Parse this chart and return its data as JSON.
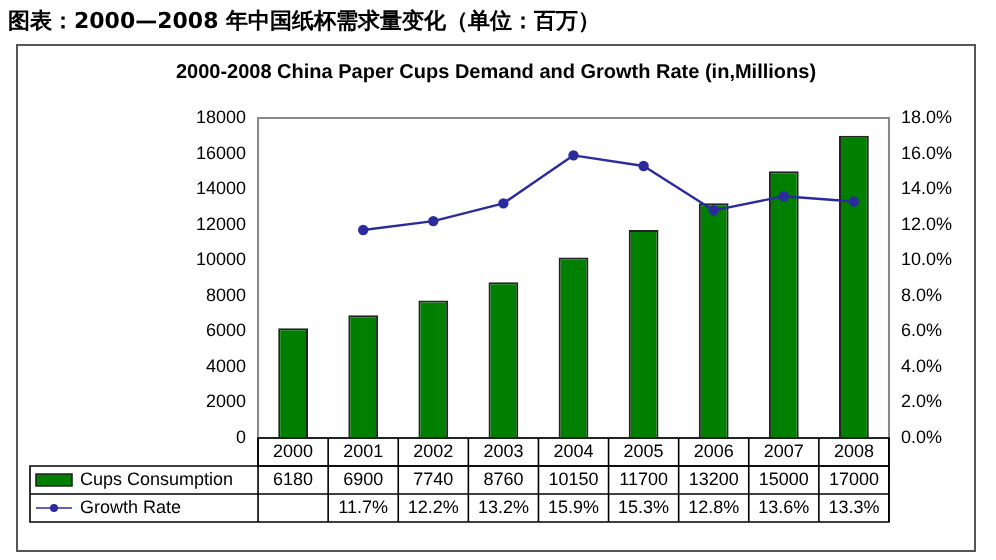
{
  "chart_data": {
    "type": "bar",
    "title": "图表：2000—2008 年中国纸杯需求量变化（单位：百万）",
    "subtitle": "2000-2008 China Paper Cups Demand and Growth Rate (in,Millions)",
    "categories": [
      "2000",
      "2001",
      "2002",
      "2003",
      "2004",
      "2005",
      "2006",
      "2007",
      "2008"
    ],
    "series": [
      {
        "name": "Cups Consumption",
        "color": "#007f00",
        "values": [
          6180,
          6900,
          7740,
          8760,
          10150,
          11700,
          13200,
          15000,
          17000
        ]
      },
      {
        "name": "Growth Rate",
        "type": "line",
        "axis": "y2",
        "color": "#2b2b9e",
        "marker": "circle",
        "values": [
          null,
          11.7,
          12.2,
          13.2,
          15.9,
          15.3,
          12.8,
          13.6,
          13.3
        ],
        "value_labels": [
          null,
          "11.7%",
          "12.2%",
          "13.2%",
          "15.9%",
          "15.3%",
          "12.8%",
          "13.6%",
          "13.3%"
        ]
      }
    ],
    "ylim": [
      0,
      18000
    ],
    "yticks": [
      0,
      2000,
      4000,
      6000,
      8000,
      10000,
      12000,
      14000,
      16000,
      18000
    ],
    "y2lim": [
      0,
      18
    ],
    "y2ticks": [
      {
        "value": 0,
        "label": "0.0%"
      },
      {
        "value": 2,
        "label": "2.0%"
      },
      {
        "value": 4,
        "label": "4.0%"
      },
      {
        "value": 6,
        "label": "6.0%"
      },
      {
        "value": 8,
        "label": "8.0%"
      },
      {
        "value": 10,
        "label": "10.0%"
      },
      {
        "value": 12,
        "label": "12.0%"
      },
      {
        "value": 14,
        "label": "14.0%"
      },
      {
        "value": 16,
        "label": "16.0%"
      },
      {
        "value": 18,
        "label": "18.0%"
      }
    ],
    "data_labels": true,
    "legend": "bottom",
    "grid": false
  }
}
